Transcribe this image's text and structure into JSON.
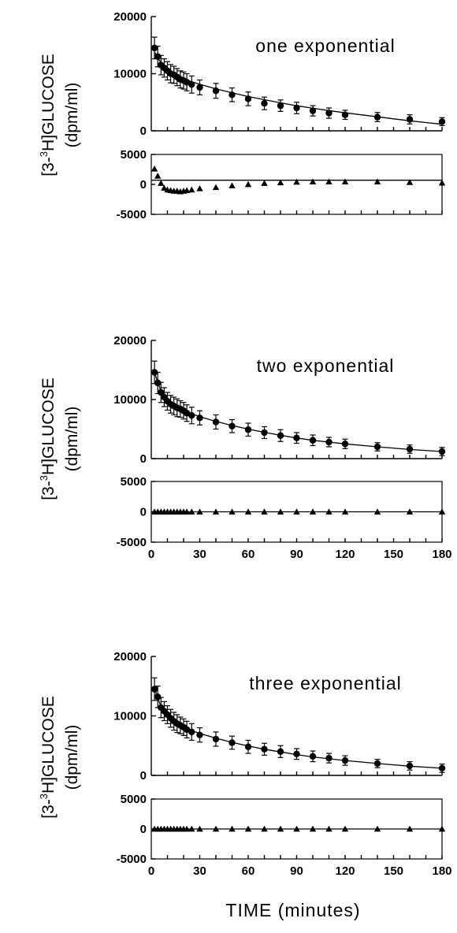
{
  "figure": {
    "xlabel": "TIME  (minutes)",
    "ylabel_prefix": "[3-",
    "ylabel_sup": "3",
    "ylabel_suffix": "H]GLUCOSE",
    "ylabel_units": "(dpm/ml)"
  },
  "chart_data": [
    {
      "type": "scatter",
      "title": "one exponential",
      "xlim": [
        0,
        180
      ],
      "main": {
        "ylim": [
          0,
          20000
        ],
        "yticks": [
          0,
          10000,
          20000
        ],
        "ytick_labels": [
          "0",
          "10000",
          "20000"
        ],
        "x": [
          2,
          4,
          6,
          8,
          10,
          12,
          14,
          16,
          18,
          20,
          22,
          25,
          30,
          40,
          50,
          60,
          70,
          80,
          90,
          100,
          110,
          120,
          140,
          160,
          180
        ],
        "y": [
          14500,
          13000,
          11500,
          11000,
          10500,
          10000,
          9800,
          9400,
          9000,
          8800,
          8500,
          8100,
          7600,
          7000,
          6300,
          5600,
          4800,
          4400,
          4000,
          3500,
          3100,
          2800,
          2400,
          2000,
          1600
        ],
        "err": [
          1900,
          1800,
          1700,
          1600,
          1600,
          1600,
          1500,
          1500,
          1500,
          1500,
          1500,
          1500,
          1300,
          1300,
          1200,
          1200,
          1100,
          1000,
          1000,
          900,
          900,
          800,
          800,
          800,
          700
        ],
        "fit": [
          [
            2,
            13800
          ],
          [
            4,
            12800
          ],
          [
            6,
            11900
          ],
          [
            8,
            11200
          ],
          [
            10,
            10600
          ],
          [
            12,
            10150
          ],
          [
            15,
            9700
          ],
          [
            20,
            9100
          ],
          [
            25,
            8600
          ],
          [
            30,
            8150
          ],
          [
            40,
            7350
          ],
          [
            50,
            6650
          ],
          [
            60,
            6000
          ],
          [
            70,
            5450
          ],
          [
            80,
            4900
          ],
          [
            90,
            4400
          ],
          [
            100,
            3950
          ],
          [
            110,
            3550
          ],
          [
            120,
            3150
          ],
          [
            130,
            2800
          ],
          [
            140,
            2450
          ],
          [
            150,
            2100
          ],
          [
            160,
            1750
          ],
          [
            170,
            1450
          ],
          [
            180,
            1150
          ]
        ]
      },
      "residual": {
        "ylim": [
          -5000,
          5000
        ],
        "yticks": [
          -5000,
          0,
          5000
        ],
        "ytick_labels": [
          "-5000",
          "0",
          "5000"
        ],
        "x": [
          2,
          4,
          6,
          8,
          10,
          12,
          14,
          16,
          18,
          20,
          22,
          25,
          30,
          40,
          50,
          60,
          70,
          80,
          90,
          100,
          110,
          120,
          140,
          160,
          180
        ],
        "y": [
          2600,
          1400,
          200,
          -600,
          -900,
          -1000,
          -1100,
          -1100,
          -1200,
          -1100,
          -1000,
          -900,
          -700,
          -500,
          -200,
          0,
          200,
          300,
          400,
          450,
          450,
          450,
          450,
          350,
          250
        ],
        "fit_line": [
          [
            0,
            700
          ],
          [
            180,
            700
          ]
        ],
        "box": true
      }
    },
    {
      "type": "scatter",
      "title": "two exponential",
      "xlim": [
        0,
        180
      ],
      "main": {
        "ylim": [
          0,
          20000
        ],
        "yticks": [
          0,
          10000,
          20000
        ],
        "ytick_labels": [
          "0",
          "10000",
          "20000"
        ],
        "x": [
          2,
          4,
          6,
          8,
          10,
          12,
          14,
          16,
          18,
          20,
          22,
          25,
          30,
          40,
          50,
          60,
          70,
          80,
          90,
          100,
          110,
          120,
          140,
          160,
          180
        ],
        "y": [
          14600,
          12800,
          11200,
          10400,
          9700,
          9200,
          8900,
          8600,
          8400,
          8100,
          7700,
          7300,
          6900,
          6200,
          5500,
          4900,
          4400,
          3900,
          3500,
          3100,
          2800,
          2500,
          2000,
          1600,
          1200
        ],
        "err": [
          1900,
          1800,
          1700,
          1600,
          1500,
          1500,
          1500,
          1500,
          1400,
          1400,
          1400,
          1400,
          1200,
          1200,
          1100,
          1100,
          1000,
          1000,
          900,
          900,
          800,
          800,
          700,
          700,
          700
        ],
        "fit": [
          [
            2,
            14600
          ],
          [
            4,
            12900
          ],
          [
            6,
            11500
          ],
          [
            8,
            10500
          ],
          [
            10,
            9800
          ],
          [
            12,
            9300
          ],
          [
            15,
            8800
          ],
          [
            20,
            8150
          ],
          [
            25,
            7600
          ],
          [
            30,
            7100
          ],
          [
            40,
            6300
          ],
          [
            50,
            5600
          ],
          [
            60,
            5000
          ],
          [
            70,
            4450
          ],
          [
            80,
            3950
          ],
          [
            90,
            3500
          ],
          [
            100,
            3100
          ],
          [
            110,
            2800
          ],
          [
            120,
            2500
          ],
          [
            140,
            2000
          ],
          [
            160,
            1550
          ],
          [
            180,
            1200
          ]
        ]
      },
      "residual": {
        "ylim": [
          -5000,
          5000
        ],
        "yticks": [
          -5000,
          0,
          5000
        ],
        "ytick_labels": [
          "-5000",
          "0",
          "5000"
        ],
        "x": [
          2,
          4,
          6,
          8,
          10,
          12,
          14,
          16,
          18,
          20,
          22,
          25,
          30,
          40,
          50,
          60,
          70,
          80,
          90,
          100,
          110,
          120,
          140,
          160,
          180
        ],
        "y": [
          0,
          0,
          0,
          0,
          0,
          0,
          0,
          0,
          0,
          0,
          0,
          0,
          0,
          0,
          0,
          0,
          0,
          0,
          0,
          0,
          0,
          0,
          0,
          0,
          0
        ],
        "fit_line": [
          [
            0,
            0
          ],
          [
            180,
            0
          ]
        ],
        "box": true,
        "xticks": [
          0,
          30,
          60,
          90,
          120,
          150,
          180
        ],
        "xtick_labels": [
          "0",
          "30",
          "60",
          "90",
          "120",
          "150",
          "180"
        ]
      }
    },
    {
      "type": "scatter",
      "title": "three exponential",
      "xlim": [
        0,
        180
      ],
      "main": {
        "ylim": [
          0,
          20000
        ],
        "yticks": [
          0,
          10000,
          20000
        ],
        "ytick_labels": [
          "0",
          "10000",
          "20000"
        ],
        "x": [
          2,
          4,
          6,
          8,
          10,
          12,
          14,
          16,
          18,
          20,
          22,
          25,
          30,
          40,
          50,
          60,
          70,
          80,
          90,
          100,
          110,
          120,
          140,
          160,
          180
        ],
        "y": [
          14500,
          13200,
          11400,
          10800,
          10200,
          9600,
          9100,
          8700,
          8400,
          8100,
          7700,
          7300,
          6800,
          6100,
          5500,
          4800,
          4400,
          4000,
          3600,
          3200,
          2900,
          2500,
          2000,
          1600,
          1200
        ],
        "err": [
          1900,
          1800,
          1700,
          1600,
          1500,
          1500,
          1500,
          1500,
          1400,
          1400,
          1400,
          1400,
          1200,
          1200,
          1100,
          1100,
          1000,
          1000,
          900,
          900,
          800,
          800,
          700,
          700,
          700
        ],
        "fit": [
          [
            2,
            14700
          ],
          [
            4,
            13000
          ],
          [
            6,
            11600
          ],
          [
            8,
            10700
          ],
          [
            10,
            10000
          ],
          [
            12,
            9400
          ],
          [
            15,
            8800
          ],
          [
            20,
            8100
          ],
          [
            25,
            7550
          ],
          [
            30,
            7050
          ],
          [
            40,
            6250
          ],
          [
            50,
            5550
          ],
          [
            60,
            4950
          ],
          [
            70,
            4400
          ],
          [
            80,
            3950
          ],
          [
            90,
            3500
          ],
          [
            100,
            3100
          ],
          [
            110,
            2800
          ],
          [
            120,
            2500
          ],
          [
            140,
            2000
          ],
          [
            160,
            1550
          ],
          [
            180,
            1200
          ]
        ]
      },
      "residual": {
        "ylim": [
          -5000,
          5000
        ],
        "yticks": [
          -5000,
          0,
          5000
        ],
        "ytick_labels": [
          "-5000",
          "0",
          "5000"
        ],
        "x": [
          2,
          4,
          6,
          8,
          10,
          12,
          14,
          16,
          18,
          20,
          22,
          25,
          30,
          40,
          50,
          60,
          70,
          80,
          90,
          100,
          110,
          120,
          140,
          160,
          180
        ],
        "y": [
          0,
          0,
          0,
          0,
          0,
          0,
          0,
          0,
          0,
          0,
          0,
          0,
          0,
          0,
          0,
          0,
          0,
          0,
          0,
          0,
          0,
          0,
          0,
          0,
          0
        ],
        "fit_line": [
          [
            0,
            0
          ],
          [
            180,
            0
          ]
        ],
        "box": true,
        "xticks": [
          0,
          30,
          60,
          90,
          120,
          150,
          180
        ],
        "xtick_labels": [
          "0",
          "30",
          "60",
          "90",
          "120",
          "150",
          "180"
        ]
      }
    }
  ]
}
